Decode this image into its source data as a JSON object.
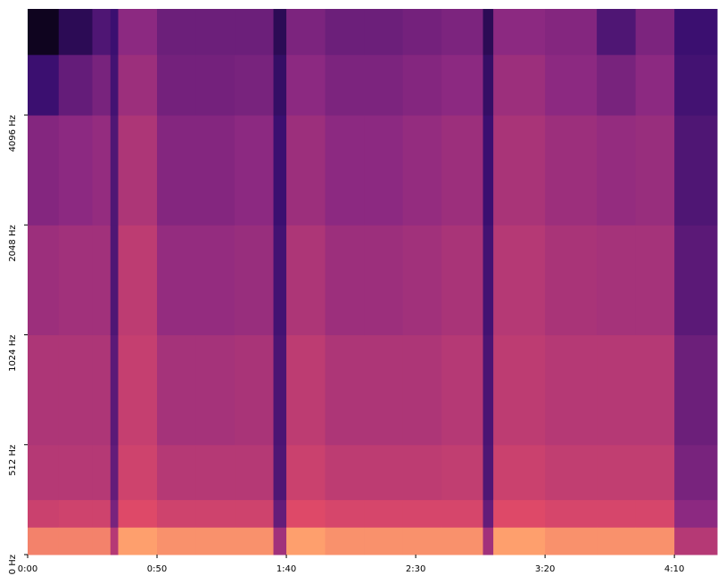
{
  "chart_data": {
    "type": "spectrogram",
    "colormap": "magma",
    "zlim": [
      -80,
      0
    ],
    "yscale": "symlog",
    "linthresh": 512,
    "xlim": [
      0,
      266.5
    ],
    "ylim": [
      0,
      8000
    ],
    "xticks": [
      {
        "value": 0,
        "label": "0:00"
      },
      {
        "value": 50,
        "label": "0:50"
      },
      {
        "value": 100,
        "label": "1:40"
      },
      {
        "value": 150,
        "label": "2:30"
      },
      {
        "value": 200,
        "label": "3:20"
      },
      {
        "value": 250,
        "label": "4:10"
      }
    ],
    "yticks": [
      {
        "value": 0,
        "label": "0 Hz"
      },
      {
        "value": 512,
        "label": "512 Hz"
      },
      {
        "value": 1024,
        "label": "1024 Hz"
      },
      {
        "value": 2048,
        "label": "2048 Hz"
      },
      {
        "value": 4096,
        "label": "4096 Hz"
      }
    ],
    "x_edges": [
      0,
      12,
      25,
      32,
      35,
      50,
      65,
      80,
      95,
      100,
      115,
      130,
      145,
      160,
      176,
      180,
      200,
      220,
      235,
      250,
      266.5
    ],
    "y_edges": [
      0,
      128,
      256,
      512,
      1024,
      2048,
      4096,
      6000,
      8000
    ],
    "values": [
      [
        -12,
        -25,
        -30,
        -32,
        -36,
        -42,
        -60,
        -75
      ],
      [
        -12,
        -24,
        -30,
        -32,
        -35,
        -40,
        -50,
        -65
      ],
      [
        -12,
        -24,
        -30,
        -32,
        -35,
        -38,
        -45,
        -55
      ],
      [
        -30,
        -45,
        -50,
        -52,
        -55,
        -55,
        -58,
        -60
      ],
      [
        -8,
        -20,
        -24,
        -26,
        -28,
        -32,
        -36,
        -40
      ],
      [
        -10,
        -24,
        -30,
        -34,
        -38,
        -42,
        -46,
        -48
      ],
      [
        -10,
        -24,
        -30,
        -34,
        -38,
        -42,
        -46,
        -48
      ],
      [
        -10,
        -24,
        -30,
        -33,
        -37,
        -40,
        -45,
        -48
      ],
      [
        -35,
        -50,
        -55,
        -56,
        -58,
        -60,
        -62,
        -65
      ],
      [
        -8,
        -20,
        -25,
        -28,
        -32,
        -36,
        -40,
        -44
      ],
      [
        -10,
        -22,
        -28,
        -32,
        -36,
        -40,
        -44,
        -48
      ],
      [
        -10,
        -22,
        -28,
        -32,
        -36,
        -40,
        -44,
        -48
      ],
      [
        -10,
        -22,
        -28,
        -32,
        -35,
        -38,
        -42,
        -46
      ],
      [
        -10,
        -22,
        -27,
        -30,
        -33,
        -36,
        -40,
        -44
      ],
      [
        -35,
        -50,
        -55,
        -56,
        -58,
        -60,
        -62,
        -65
      ],
      [
        -8,
        -20,
        -25,
        -28,
        -30,
        -33,
        -36,
        -40
      ],
      [
        -10,
        -22,
        -27,
        -30,
        -33,
        -36,
        -40,
        -42
      ],
      [
        -10,
        -22,
        -27,
        -30,
        -34,
        -38,
        -45,
        -55
      ],
      [
        -10,
        -22,
        -27,
        -30,
        -34,
        -37,
        -40,
        -44
      ],
      [
        -30,
        -40,
        -45,
        -48,
        -52,
        -55,
        -58,
        -60
      ]
    ]
  }
}
